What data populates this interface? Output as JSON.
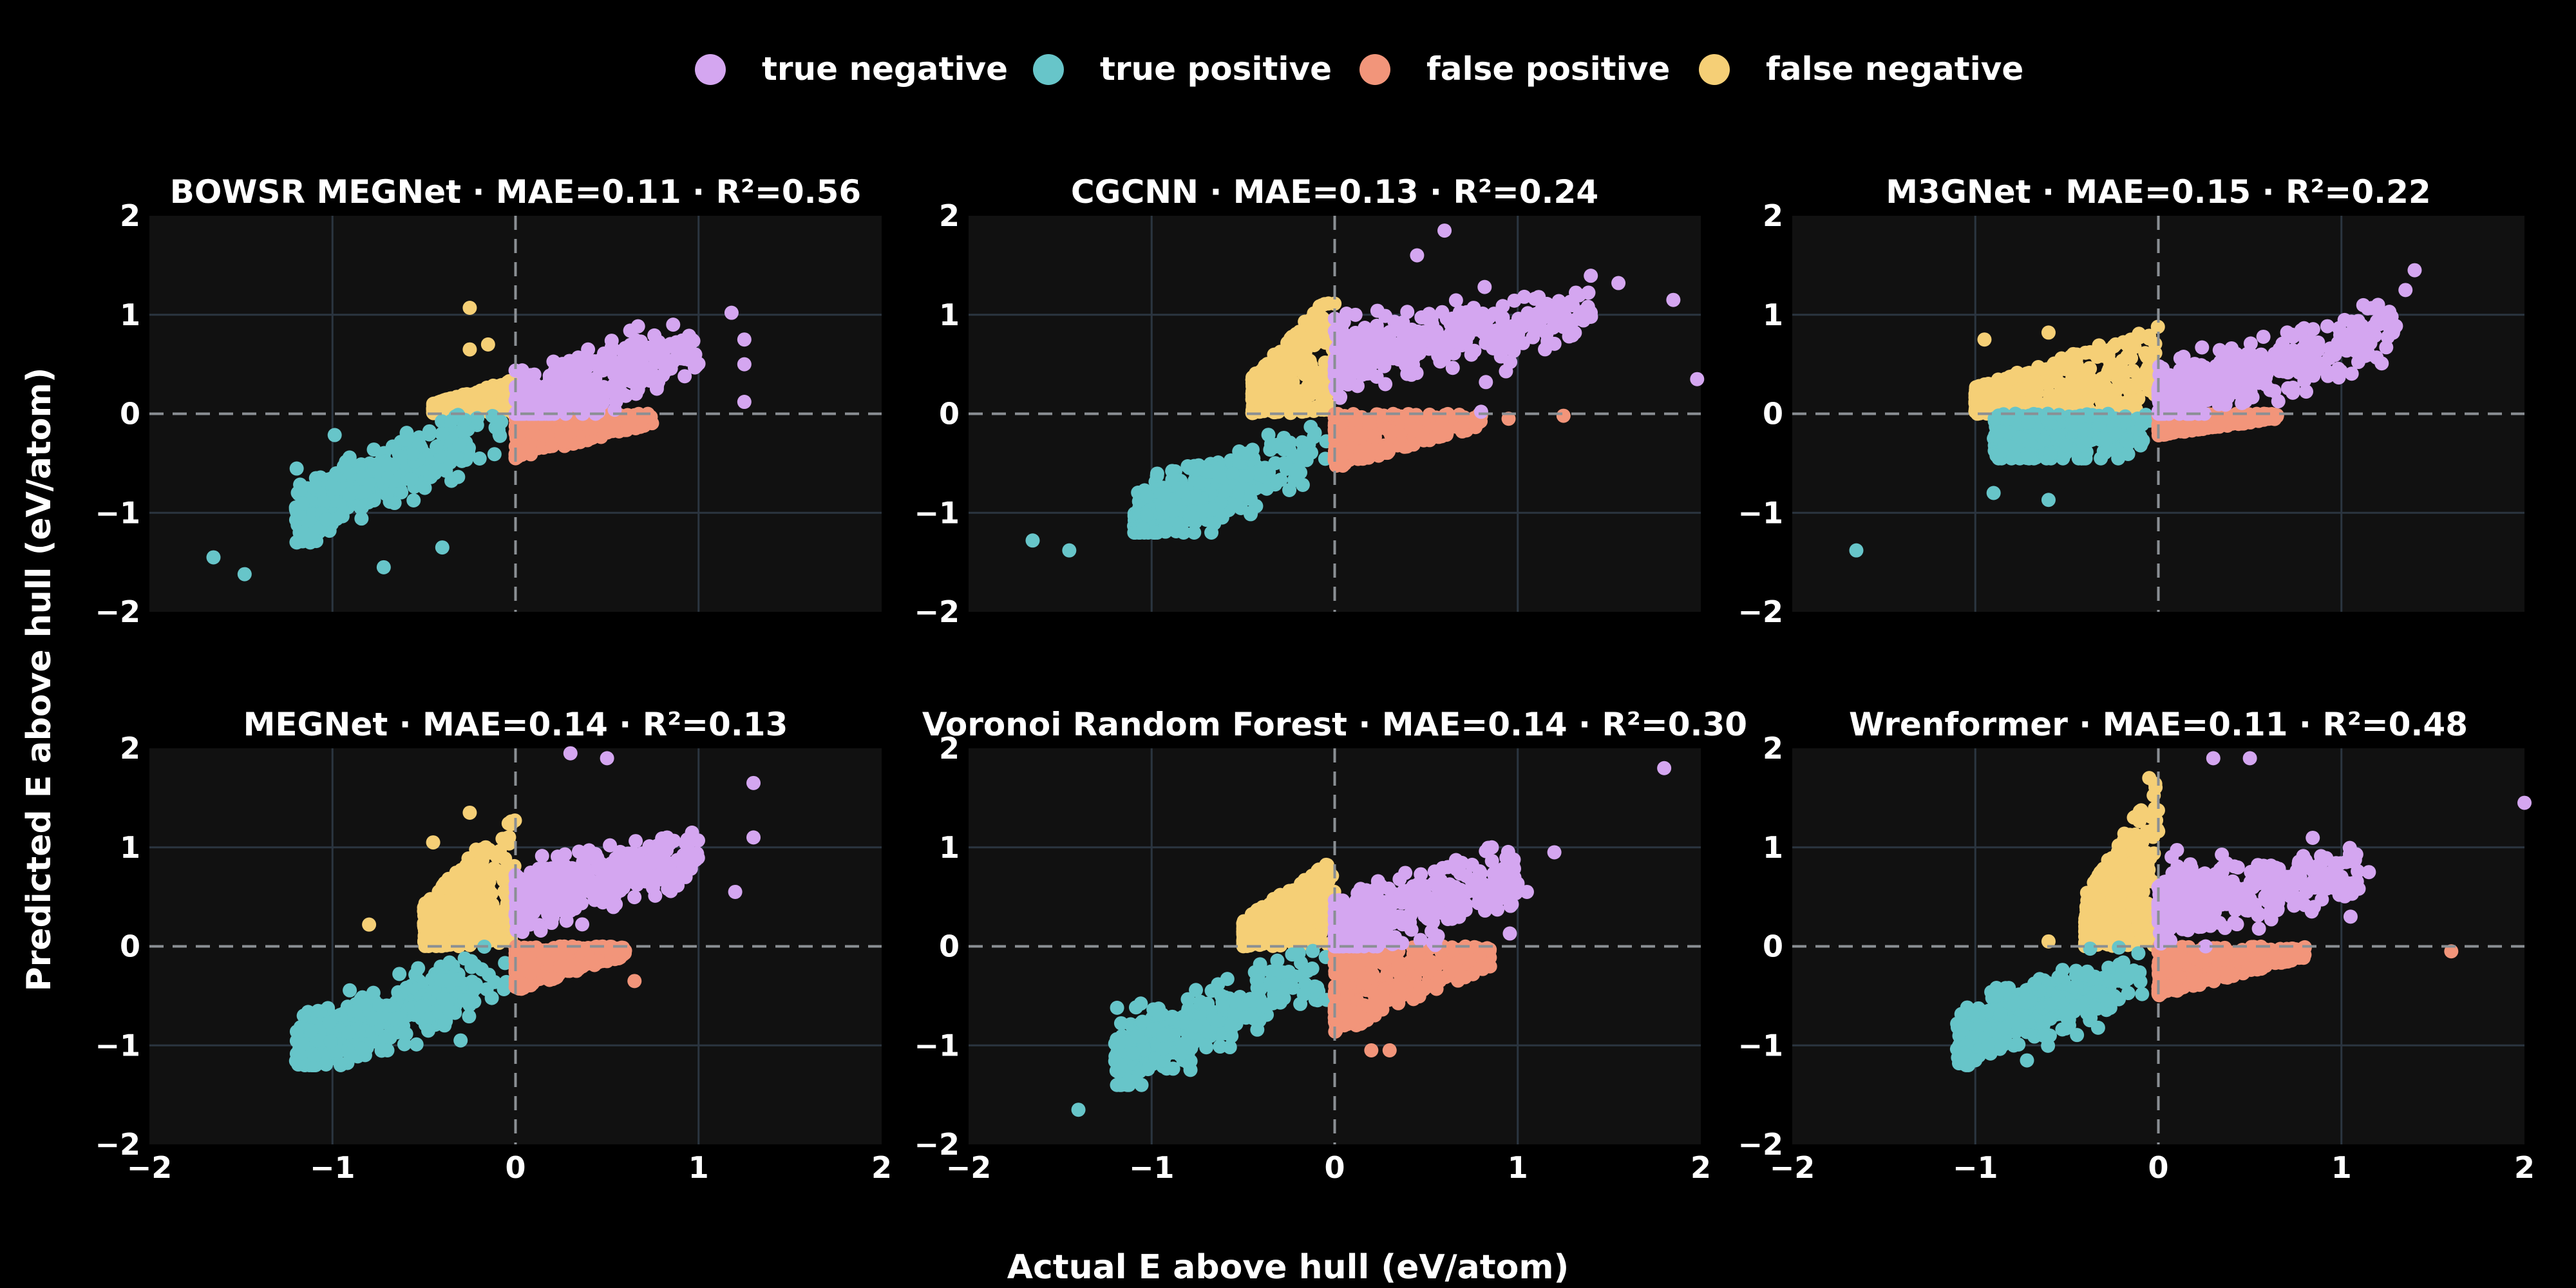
{
  "chart_data": {
    "type": "scatter",
    "layout": "2x3 facet grid",
    "xlabel": "Actual E above hull (eV/atom)",
    "ylabel": "Predicted E above hull (eV/atom)",
    "xlim": [
      -2,
      2
    ],
    "ylim": [
      -2,
      2
    ],
    "xticks": [
      "−2",
      "−1",
      "0",
      "1",
      "2"
    ],
    "yticks": [
      "−2",
      "−1",
      "0",
      "1",
      "2"
    ],
    "grid": true,
    "reference_lines": [
      "x=0 dashed",
      "y=0 dashed"
    ],
    "legend_position": "top-center",
    "legend": [
      {
        "label": "true negative",
        "color": "#d4a6f0"
      },
      {
        "label": "true positive",
        "color": "#67c5c9"
      },
      {
        "label": "false positive",
        "color": "#f2957a"
      },
      {
        "label": "false negative",
        "color": "#f5cf76"
      }
    ],
    "panels": [
      {
        "title": "BOWSR MEGNet · MAE=0.11 · R²=0.56",
        "regions": {
          "true_negative": {
            "x": [
              0.0,
              1.0
            ],
            "y": [
              0.0,
              0.9
            ],
            "slope": 0.6,
            "intercept": 0.05
          },
          "true_positive": {
            "x": [
              -1.2,
              0.0
            ],
            "y": [
              -1.3,
              0.0
            ],
            "slope": 0.8,
            "intercept": -0.05
          },
          "false_positive": {
            "x": [
              0.0,
              0.75
            ],
            "y": [
              -0.45,
              0.0
            ]
          },
          "false_negative": {
            "x": [
              -0.45,
              0.0
            ],
            "y": [
              0.0,
              0.35
            ]
          }
        },
        "outliers": [
          [
            -1.65,
            -1.45
          ],
          [
            -1.48,
            -1.62
          ],
          [
            -0.72,
            -1.55
          ],
          [
            -0.4,
            -1.35
          ],
          [
            1.18,
            1.02
          ],
          [
            1.25,
            0.75
          ],
          [
            1.25,
            0.5
          ],
          [
            1.25,
            0.12
          ],
          [
            -0.25,
            1.07
          ],
          [
            -0.25,
            0.65
          ],
          [
            -0.15,
            0.7
          ]
        ]
      },
      {
        "title": "CGCNN · MAE=0.13 · R²=0.24",
        "regions": {
          "true_negative": {
            "x": [
              0.0,
              1.4
            ],
            "y": [
              0.0,
              1.8
            ],
            "slope": 0.35,
            "intercept": 0.55
          },
          "true_positive": {
            "x": [
              -1.1,
              0.0
            ],
            "y": [
              -1.2,
              0.0
            ],
            "slope": 0.7,
            "intercept": -0.3
          },
          "false_positive": {
            "x": [
              0.0,
              0.8
            ],
            "y": [
              -0.55,
              0.0
            ]
          },
          "false_negative": {
            "x": [
              -0.45,
              0.0
            ],
            "y": [
              0.0,
              1.25
            ]
          }
        },
        "outliers": [
          [
            -1.65,
            -1.28
          ],
          [
            -1.45,
            -1.38
          ],
          [
            1.55,
            1.32
          ],
          [
            1.85,
            1.15
          ],
          [
            1.98,
            0.35
          ],
          [
            0.6,
            1.85
          ],
          [
            0.45,
            1.6
          ],
          [
            1.4,
            0.98
          ],
          [
            0.8,
            0.02
          ],
          [
            1.25,
            -0.02
          ],
          [
            0.95,
            -0.05
          ]
        ]
      },
      {
        "title": "M3GNet · MAE=0.15 · R²=0.22",
        "regions": {
          "true_negative": {
            "x": [
              0.0,
              1.3
            ],
            "y": [
              0.0,
              1.2
            ],
            "slope": 0.6,
            "intercept": 0.1
          },
          "true_positive": {
            "x": [
              -0.9,
              0.0
            ],
            "y": [
              -0.45,
              0.0
            ],
            "slope": 0.0,
            "intercept": -0.18
          },
          "false_positive": {
            "x": [
              0.0,
              0.65
            ],
            "y": [
              -0.22,
              0.0
            ]
          },
          "false_negative": {
            "x": [
              -1.0,
              0.0
            ],
            "y": [
              0.0,
              0.9
            ]
          }
        },
        "outliers": [
          [
            -1.65,
            -1.38
          ],
          [
            -0.9,
            -0.8
          ],
          [
            -0.6,
            -0.87
          ],
          [
            -0.95,
            0.75
          ],
          [
            -0.6,
            0.82
          ],
          [
            1.4,
            1.45
          ],
          [
            1.35,
            1.25
          ],
          [
            1.2,
            1.1
          ]
        ]
      },
      {
        "title": "MEGNet · MAE=0.14 · R²=0.13",
        "regions": {
          "true_negative": {
            "x": [
              0.0,
              1.0
            ],
            "y": [
              0.0,
              1.5
            ],
            "slope": 0.5,
            "intercept": 0.45
          },
          "true_positive": {
            "x": [
              -1.2,
              0.0
            ],
            "y": [
              -1.2,
              0.0
            ],
            "slope": 0.75,
            "intercept": -0.2
          },
          "false_positive": {
            "x": [
              0.0,
              0.6
            ],
            "y": [
              -0.45,
              0.0
            ]
          },
          "false_negative": {
            "x": [
              -0.5,
              0.0
            ],
            "y": [
              0.0,
              1.4
            ]
          }
        },
        "outliers": [
          [
            -1.1,
            -1.1
          ],
          [
            -0.7,
            -1.05
          ],
          [
            -0.3,
            -0.95
          ],
          [
            -0.8,
            0.22
          ],
          [
            -0.45,
            1.05
          ],
          [
            -0.25,
            1.35
          ],
          [
            0.5,
            1.9
          ],
          [
            0.3,
            1.95
          ],
          [
            1.3,
            1.65
          ],
          [
            1.3,
            1.1
          ],
          [
            1.2,
            0.55
          ],
          [
            0.65,
            -0.35
          ]
        ]
      },
      {
        "title": "Voronoi Random Forest · MAE=0.14 · R²=0.30",
        "regions": {
          "true_negative": {
            "x": [
              0.0,
              1.0
            ],
            "y": [
              0.0,
              1.0
            ],
            "slope": 0.45,
            "intercept": 0.2
          },
          "true_positive": {
            "x": [
              -1.2,
              0.0
            ],
            "y": [
              -1.4,
              0.0
            ],
            "slope": 0.8,
            "intercept": -0.2
          },
          "false_positive": {
            "x": [
              0.0,
              0.85
            ],
            "y": [
              -0.9,
              0.0
            ]
          },
          "false_negative": {
            "x": [
              -0.5,
              0.0
            ],
            "y": [
              0.0,
              0.9
            ]
          }
        },
        "outliers": [
          [
            -1.4,
            -1.65
          ],
          [
            1.8,
            1.8
          ],
          [
            1.2,
            0.95
          ],
          [
            1.05,
            0.55
          ],
          [
            0.3,
            -1.05
          ],
          [
            0.2,
            -1.05
          ]
        ]
      },
      {
        "title": "Wrenformer · MAE=0.11 · R²=0.48",
        "regions": {
          "true_negative": {
            "x": [
              0.0,
              1.1
            ],
            "y": [
              0.0,
              1.2
            ],
            "slope": 0.3,
            "intercept": 0.4
          },
          "true_positive": {
            "x": [
              -1.1,
              0.0
            ],
            "y": [
              -1.2,
              0.0
            ],
            "slope": 0.8,
            "intercept": -0.1
          },
          "false_positive": {
            "x": [
              0.0,
              0.8
            ],
            "y": [
              -0.5,
              0.0
            ]
          },
          "false_negative": {
            "x": [
              -0.4,
              0.0
            ],
            "y": [
              0.0,
              1.7
            ]
          }
        },
        "outliers": [
          [
            -1.05,
            -1.2
          ],
          [
            -1.0,
            -1.15
          ],
          [
            1.6,
            -0.05
          ],
          [
            2.0,
            1.45
          ],
          [
            0.3,
            1.9
          ],
          [
            0.5,
            1.9
          ],
          [
            1.15,
            0.75
          ],
          [
            1.05,
            0.3
          ],
          [
            -0.6,
            0.05
          ],
          [
            -0.05,
            1.7
          ],
          [
            -0.1,
            1.35
          ]
        ]
      }
    ]
  }
}
